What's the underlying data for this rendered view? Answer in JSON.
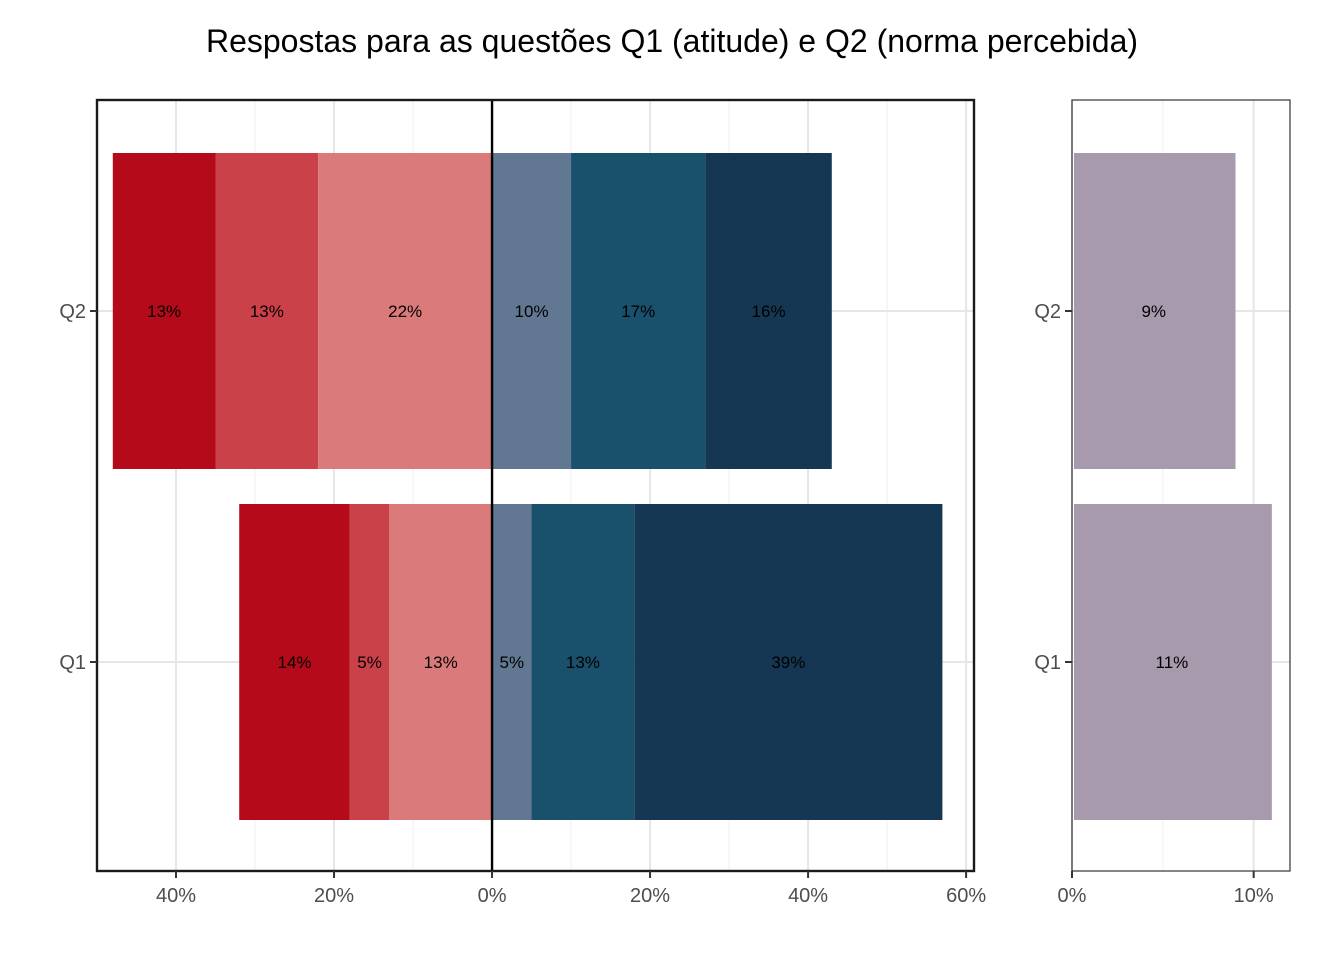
{
  "chart_data": {
    "title": "Respostas para as questões Q1 (atitude) e Q2 (norma percebida)",
    "type": "bar",
    "orientation": "horizontal",
    "stacked": "diverging",
    "categories": [
      "Q2",
      "Q1"
    ],
    "panels": [
      {
        "id": "main",
        "xlim": [
          -50,
          61
        ],
        "x_ticks": [
          -40,
          -20,
          0,
          20,
          40,
          60
        ],
        "x_tick_labels": [
          "40%",
          "20%",
          "0%",
          "20%",
          "40%",
          "60%"
        ],
        "grid": true,
        "zero_line": true,
        "series": [
          {
            "color": "#b50a19",
            "side": "negative",
            "values": {
              "Q2": 13,
              "Q1": 14
            },
            "labels": {
              "Q2": "13%",
              "Q1": "14%"
            }
          },
          {
            "color": "#cb4149",
            "side": "negative",
            "values": {
              "Q2": 13,
              "Q1": 5
            },
            "labels": {
              "Q2": "13%",
              "Q1": "5%"
            }
          },
          {
            "color": "#db7a7b",
            "side": "negative",
            "values": {
              "Q2": 22,
              "Q1": 13
            },
            "labels": {
              "Q2": "22%",
              "Q1": "13%"
            }
          },
          {
            "color": "#627892",
            "side": "positive",
            "values": {
              "Q2": 10,
              "Q1": 5
            },
            "labels": {
              "Q2": "10%",
              "Q1": "5%"
            }
          },
          {
            "color": "#19506b",
            "side": "positive",
            "values": {
              "Q2": 17,
              "Q1": 13
            },
            "labels": {
              "Q2": "17%",
              "Q1": "13%"
            }
          },
          {
            "color": "#163753",
            "side": "positive",
            "values": {
              "Q2": 16,
              "Q1": 39
            },
            "labels": {
              "Q2": "16%",
              "Q1": "39%"
            }
          }
        ]
      },
      {
        "id": "neutral",
        "xlim": [
          0,
          12
        ],
        "x_ticks": [
          0,
          10
        ],
        "x_tick_labels": [
          "0%",
          "10%"
        ],
        "grid": true,
        "series": [
          {
            "color": "#a69aac",
            "values": {
              "Q2": 9,
              "Q1": 11
            },
            "labels": {
              "Q2": "9%",
              "Q1": "11%"
            }
          }
        ]
      }
    ]
  }
}
